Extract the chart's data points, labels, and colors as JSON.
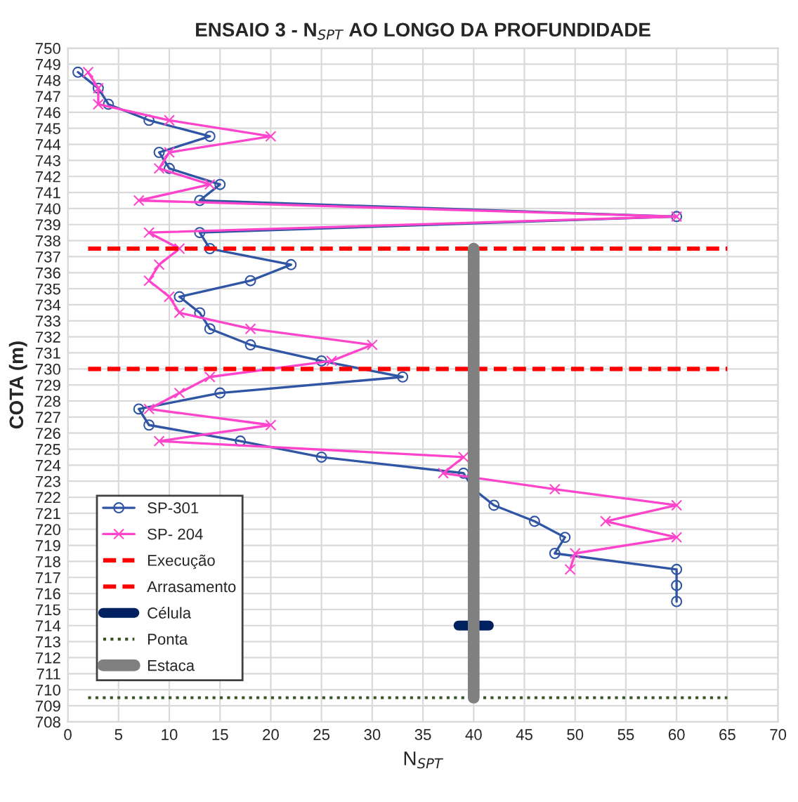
{
  "chart_data": {
    "type": "line",
    "title": "ENSAIO 3 - N$_{SPT}$ AO LONGO DA PROFUNDIDADE",
    "xlabel": "N$_{SPT}$",
    "ylabel": "COTA (m)",
    "xlim": [
      0,
      70
    ],
    "xticks": [
      0,
      5,
      10,
      15,
      20,
      25,
      30,
      35,
      40,
      45,
      50,
      55,
      60,
      65,
      70
    ],
    "ylim": [
      708,
      750
    ],
    "yticks": [
      708,
      709,
      710,
      711,
      712,
      713,
      714,
      715,
      716,
      717,
      718,
      719,
      720,
      721,
      722,
      723,
      724,
      725,
      726,
      727,
      728,
      729,
      730,
      731,
      732,
      733,
      734,
      735,
      736,
      737,
      738,
      739,
      740,
      741,
      742,
      743,
      744,
      745,
      746,
      747,
      748,
      749,
      750
    ],
    "grid": true,
    "legend": "bottom left",
    "series": [
      {
        "name": "SP-301",
        "color": "#2f55a4",
        "marker": "circle",
        "line_style": "solid",
        "x": [
          1,
          3,
          4,
          8,
          14,
          9,
          10,
          15,
          13,
          60,
          13,
          14,
          22,
          18,
          11,
          13,
          14,
          18,
          25,
          33,
          15,
          7,
          8,
          17,
          25,
          39,
          40,
          42,
          46,
          49,
          48,
          60,
          60,
          60
        ],
        "values": [
          748.5,
          747.5,
          746.5,
          745.5,
          744.5,
          743.5,
          742.5,
          741.5,
          740.5,
          739.5,
          738.5,
          737.5,
          736.5,
          735.5,
          734.5,
          733.5,
          732.5,
          731.5,
          730.5,
          729.5,
          728.5,
          727.5,
          726.5,
          725.5,
          724.5,
          723.5,
          722.5,
          721.5,
          720.5,
          719.5,
          718.5,
          717.5,
          716.5,
          715.5
        ]
      },
      {
        "name": "SP- 204",
        "color": "#ff44cc",
        "marker": "cross",
        "line_style": "solid",
        "x": [
          2,
          3,
          3,
          10,
          20,
          10,
          9,
          14,
          7,
          60,
          8,
          11,
          9,
          8,
          10,
          11,
          18,
          30,
          26,
          14,
          11,
          8,
          20,
          9,
          39,
          37,
          48,
          60,
          53,
          60,
          50,
          49.5
        ],
        "values": [
          748.5,
          747.5,
          746.5,
          745.5,
          744.5,
          743.5,
          742.5,
          741.5,
          740.5,
          739.5,
          738.5,
          737.5,
          736.5,
          735.5,
          734.5,
          733.5,
          732.5,
          731.5,
          730.5,
          729.5,
          728.5,
          727.5,
          726.5,
          725.5,
          724.5,
          723.5,
          722.5,
          721.5,
          720.5,
          719.5,
          718.5,
          717.5
        ]
      },
      {
        "name": "Execução",
        "color": "#ff0000",
        "marker": "none",
        "line_style": "dashed",
        "x": [
          2,
          65
        ],
        "values": [
          737.5,
          737.5
        ]
      },
      {
        "name": "Arrasamento",
        "color": "#ff0000",
        "marker": "none",
        "line_style": "dashed",
        "x": [
          2,
          65
        ],
        "values": [
          730,
          730
        ]
      },
      {
        "name": "Célula",
        "color": "#002060",
        "marker": "none",
        "line_style": "solid",
        "x": [
          38.5,
          41.5
        ],
        "values": [
          714,
          714
        ]
      },
      {
        "name": "Ponta",
        "color": "#375623",
        "marker": "none",
        "line_style": "dotted",
        "x": [
          2,
          65
        ],
        "values": [
          709.5,
          709.5
        ]
      },
      {
        "name": "Estaca",
        "color": "#808080",
        "marker": "none",
        "line_style": "solid",
        "x": [
          40,
          40
        ],
        "values": [
          709.5,
          737.5
        ]
      }
    ]
  }
}
